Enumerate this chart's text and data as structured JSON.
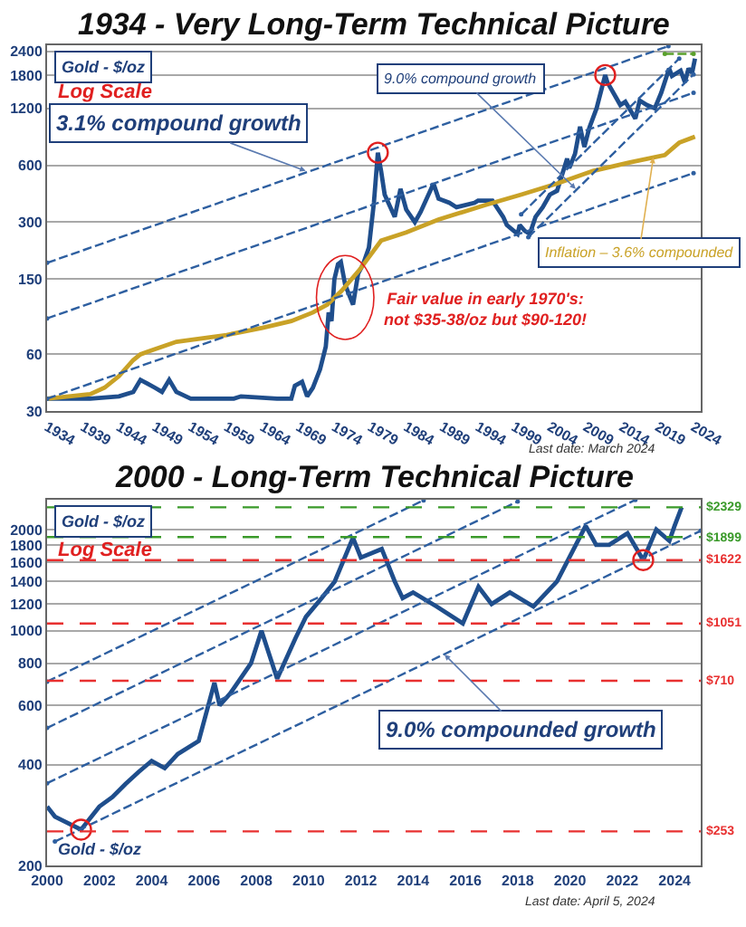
{
  "chart_data": [
    {
      "type": "line",
      "title": "1934 - Very Long-Term Technical Picture",
      "log": "y",
      "grid": "y",
      "xlim": [
        1934,
        2025
      ],
      "xticks": [
        1934,
        1939,
        1944,
        1949,
        1954,
        1959,
        1964,
        1969,
        1974,
        1979,
        1984,
        1989,
        1994,
        1999,
        2004,
        2009,
        2014,
        2019,
        2024
      ],
      "ylim": [
        30,
        2600
      ],
      "yticks": [
        30,
        60,
        150,
        300,
        600,
        1200,
        1800,
        2400
      ],
      "series": [
        {
          "color": "#1f4e8c",
          "x": [
            1934,
            1938,
            1940,
            1944,
            1946,
            1947,
            1948,
            1949,
            1950,
            1951,
            1952,
            1954,
            1960,
            1961,
            1966,
            1968,
            1968.5,
            1969.5,
            1970.2,
            1971,
            1972,
            1972.8,
            1973.2,
            1973.6,
            1974,
            1974.5,
            1974.9,
            1975.5,
            1976.6,
            1977.3,
            1978,
            1978.8,
            1979.5,
            1980.05,
            1980.5,
            1981,
            1982.4,
            1983.2,
            1984,
            1985.2,
            1986,
            1987.8,
            1988.5,
            1990,
            1991,
            1993.5,
            1994,
            1996,
            1997.5,
            1998,
            1999.5,
            1999.8,
            2000.5,
            2001.2,
            2002,
            2003,
            2004,
            2005,
            2006.4,
            2006.7,
            2007.5,
            2008.2,
            2008.8,
            2009.5,
            2010.5,
            2011.7,
            2012,
            2013.3,
            2013.8,
            2014.5,
            2015.9,
            2016.5,
            2017.5,
            2018.6,
            2019.5,
            2020.6,
            2021,
            2022.2,
            2022.8,
            2023.3,
            2023.8,
            2024.2
          ],
          "values": [
            35,
            35,
            35,
            36,
            38,
            44,
            42,
            40,
            38,
            44,
            38,
            35,
            35,
            36,
            35,
            35,
            41,
            43,
            36,
            40,
            50,
            66,
            100,
            90,
            150,
            180,
            185,
            140,
            110,
            160,
            180,
            220,
            380,
            700,
            560,
            420,
            320,
            450,
            350,
            300,
            340,
            480,
            400,
            380,
            360,
            380,
            390,
            390,
            320,
            290,
            260,
            290,
            270,
            260,
            320,
            360,
            420,
            440,
            650,
            580,
            690,
            960,
            750,
            950,
            1200,
            1800,
            1650,
            1350,
            1250,
            1300,
            1060,
            1320,
            1250,
            1200,
            1450,
            1950,
            1780,
            1900,
            1650,
            1950,
            1850,
            2200
          ]
        },
        {
          "color": "#c9a227",
          "x": [
            1934,
            1940,
            1942,
            1944,
            1946,
            1947,
            1948,
            1952,
            1959,
            1964,
            1968,
            1971,
            1973,
            1975,
            1977.5,
            1980.5,
            1984,
            1988.5,
            1995,
            2000,
            2005,
            2010,
            2015,
            2020,
            2022,
            2024.2
          ],
          "values": [
            35,
            37,
            40,
            46,
            56,
            60,
            62,
            70,
            76,
            83,
            90,
            100,
            110,
            130,
            168,
            240,
            265,
            310,
            370,
            420,
            480,
            560,
            620,
            680,
            790,
            850
          ]
        },
        {
          "color": "#2e5fa0",
          "line_style": "dashed",
          "x": [
            1934,
            2020.5
          ],
          "values": [
            183,
            2560
          ]
        },
        {
          "color": "#2e5fa0",
          "line_style": "dashed",
          "x": [
            1934,
            2024
          ],
          "values": [
            93,
            1450
          ]
        },
        {
          "color": "#2e5fa0",
          "line_style": "dashed",
          "x": [
            1934,
            2024
          ],
          "values": [
            35,
            546
          ]
        },
        {
          "color": "#2e5fa0",
          "line_style": "dashed",
          "x": [
            2000,
            2022
          ],
          "values": [
            330,
            2200
          ]
        },
        {
          "color": "#2e5fa0",
          "line_style": "dashed",
          "x": [
            2001,
            2024
          ],
          "values": [
            250,
            1815
          ]
        },
        {
          "color": "#5aa02c",
          "line_style": "dashed",
          "x": [
            2020,
            2024
          ],
          "values": [
            2330,
            2330
          ]
        },
        {
          "type": "scatter",
          "marker": "circle",
          "color": "#e02020",
          "x": [
            1980.05,
            2011.7
          ],
          "values": [
            700,
            1800
          ]
        }
      ],
      "annotations": [
        "Gold - $/oz",
        "Log Scale",
        {
          "text": "3.1% compound growth",
          "x": 1970,
          "y": 560
        },
        {
          "text": "9.0% compound growth",
          "x": 2007.6,
          "y": 450
        },
        {
          "text": "Inflation – 3.6% compounded",
          "x": 2018.4,
          "y": 660
        },
        "Fair value in early 1970's:\nnot $35-38/oz but $90-120!",
        "Last date: March 2024"
      ]
    },
    {
      "type": "line",
      "title": "2000 - Long-Term Technical Picture",
      "log": "y",
      "grid": "y",
      "xlim": [
        2000,
        2025
      ],
      "xticks": [
        2000,
        2002,
        2004,
        2006,
        2008,
        2010,
        2012,
        2014,
        2016,
        2018,
        2020,
        2022,
        2024
      ],
      "ylim": [
        200,
        2460
      ],
      "yticks": [
        200,
        400,
        600,
        800,
        1000,
        1200,
        1400,
        1600,
        1800,
        2000
      ],
      "series": [
        {
          "color": "#1f4e8c",
          "x": [
            2000,
            2000.3,
            2001.3,
            2002,
            2002.5,
            2003,
            2003.5,
            2004,
            2004.5,
            2005,
            2005.8,
            2006.4,
            2006.6,
            2007,
            2007.8,
            2008.2,
            2008.8,
            2009.5,
            2009.9,
            2010.5,
            2011,
            2011.7,
            2012,
            2012.8,
            2013.3,
            2013.6,
            2014,
            2014.9,
            2015.9,
            2016.5,
            2017,
            2017.7,
            2018.6,
            2019.5,
            2020.6,
            2021,
            2021.5,
            2022.2,
            2022.8,
            2023.3,
            2023.8,
            2024,
            2024.27
          ],
          "values": [
            300,
            280,
            256,
            300,
            320,
            350,
            380,
            410,
            390,
            430,
            470,
            700,
            600,
            650,
            800,
            1000,
            720,
            950,
            1100,
            1250,
            1400,
            1890,
            1650,
            1750,
            1400,
            1250,
            1300,
            1180,
            1051,
            1350,
            1200,
            1300,
            1180,
            1400,
            2050,
            1800,
            1800,
            1950,
            1622,
            2000,
            1850,
            2050,
            2329
          ]
        },
        {
          "color": "#2e5fa0",
          "line_style": "dashed",
          "x": [
            2000.3,
            2025
          ],
          "values": [
            236,
            1982
          ]
        },
        {
          "color": "#2e5fa0",
          "line_style": "dashed",
          "x": [
            2000,
            2022.5
          ],
          "values": [
            352,
            2450
          ]
        },
        {
          "color": "#2e5fa0",
          "line_style": "dashed",
          "x": [
            2000,
            2018
          ],
          "values": [
            514,
            2424
          ]
        },
        {
          "color": "#2e5fa0",
          "line_style": "dashed",
          "x": [
            2000,
            2014.4
          ],
          "values": [
            706,
            2443
          ]
        },
        {
          "type": "scatter",
          "marker": "circle",
          "color": "#e02020",
          "x": [
            2001.3,
            2022.8
          ],
          "values": [
            256,
            1622
          ]
        }
      ],
      "ref_lines": [
        {
          "axis": "y",
          "value": 2329,
          "label": "$2329",
          "color": "#3a9a2a",
          "line_style": "dashed"
        },
        {
          "axis": "y",
          "value": 1899,
          "label": "$1899",
          "color": "#3a9a2a",
          "line_style": "dashed"
        },
        {
          "axis": "y",
          "value": 1622,
          "label": "$1622",
          "color": "#e83030",
          "line_style": "dashed"
        },
        {
          "axis": "y",
          "value": 1051,
          "label": "$1051",
          "color": "#e83030",
          "line_style": "dashed"
        },
        {
          "axis": "y",
          "value": 710,
          "label": "$710",
          "color": "#e83030",
          "line_style": "dashed"
        },
        {
          "axis": "y",
          "value": 253,
          "label": "$253",
          "color": "#e83030",
          "line_style": "dashed"
        }
      ],
      "annotations": [
        "Gold - $/oz",
        "Log Scale",
        {
          "text": "9.0% compounded growth",
          "x": 2015.2,
          "y": 850
        },
        "Gold - $/oz",
        "Last date: April 5, 2024"
      ]
    }
  ]
}
